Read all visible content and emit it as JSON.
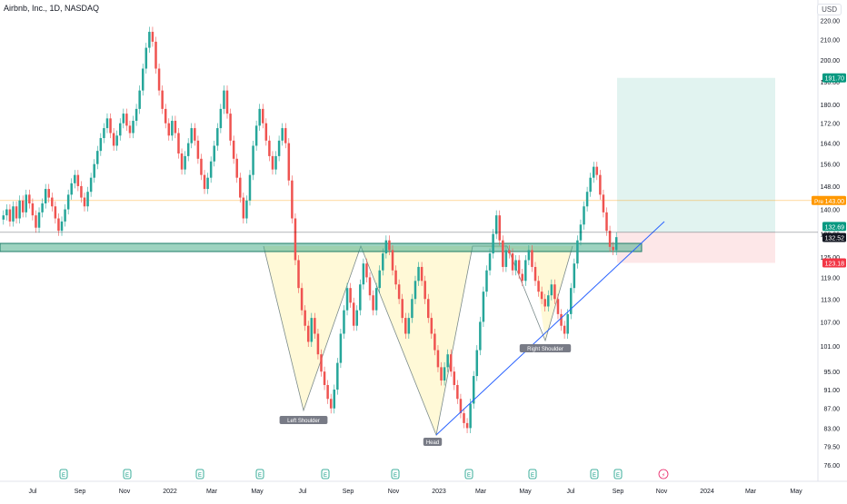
{
  "header": {
    "title": "Airbnb, Inc., 1D, NASDAQ",
    "currency": "USD"
  },
  "colors": {
    "up": "#26a69a",
    "down": "#ef5350",
    "trendline": "#2962ff",
    "neckline": "#1e7d68",
    "target": "#089981",
    "stop": "#f23645",
    "pre": "#ff9800",
    "last": "#131722"
  },
  "chart_data": {
    "type": "candlestick",
    "x_ticks": [
      "Jul",
      "Sep",
      "Nov",
      "2022",
      "Mar",
      "May",
      "Jul",
      "Sep",
      "Nov",
      "2023",
      "Mar",
      "May",
      "Jul",
      "Sep",
      "Nov",
      "2024",
      "Mar",
      "May"
    ],
    "y_ticks": [
      220.0,
      210.0,
      200.0,
      190.0,
      180.0,
      172.0,
      164.0,
      156.0,
      148.0,
      140.0,
      132.0,
      125.0,
      119.0,
      113.0,
      107.0,
      101.0,
      95.0,
      91.0,
      87.0,
      83.0,
      79.5,
      76.0
    ],
    "y_axis": {
      "scale": "log",
      "range": [
        76,
        224
      ]
    },
    "price_labels": [
      {
        "value": "191.70",
        "kind": "target"
      },
      {
        "value": "143.00",
        "prefix": "Pre",
        "kind": "pre"
      },
      {
        "value": "132.69",
        "kind": "target-small"
      },
      {
        "value": "132.52",
        "kind": "last"
      },
      {
        "value": "123.18",
        "kind": "stop"
      }
    ],
    "annotations": [
      "Left Shoulder",
      "Head",
      "Right Shoulder"
    ],
    "events": [
      "E",
      "E",
      "E",
      "E",
      "E",
      "E",
      "E",
      "E",
      "E",
      "E",
      "⚡",
      "E"
    ],
    "closes": [
      138,
      140,
      136,
      141,
      137,
      143,
      139,
      145,
      142,
      138,
      134,
      139,
      142,
      147,
      144,
      141,
      137,
      133,
      136,
      140,
      145,
      149,
      152,
      148,
      144,
      141,
      146,
      151,
      156,
      161,
      166,
      170,
      174,
      168,
      163,
      167,
      172,
      176,
      171,
      168,
      173,
      178,
      186,
      196,
      206,
      214,
      209,
      196,
      186,
      178,
      172,
      167,
      173,
      168,
      160,
      154,
      159,
      164,
      170,
      165,
      158,
      152,
      147,
      151,
      157,
      163,
      170,
      178,
      186,
      176,
      165,
      158,
      151,
      144,
      137,
      143,
      152,
      163,
      171,
      178,
      172,
      165,
      159,
      154,
      159,
      165,
      170,
      164,
      150,
      137,
      124,
      116,
      110,
      106,
      102,
      108,
      104,
      99,
      95,
      92,
      89,
      87,
      91,
      97,
      104,
      110,
      116,
      112,
      106,
      110,
      117,
      123,
      119,
      114,
      110,
      116,
      121,
      126,
      130,
      127,
      121,
      117,
      113,
      108,
      104,
      108,
      113,
      118,
      122,
      118,
      113,
      108,
      104,
      100,
      96,
      93,
      96,
      99,
      95,
      92,
      89,
      86,
      84,
      83,
      88,
      94,
      100,
      107,
      115,
      121,
      126,
      132,
      138,
      130,
      122,
      127,
      126,
      121,
      124,
      120,
      118,
      124,
      127,
      122,
      118,
      115,
      113,
      111,
      114,
      117,
      113,
      109,
      106,
      104,
      109,
      116,
      123,
      130,
      135,
      141,
      146,
      151,
      155,
      152,
      145,
      139,
      133,
      128,
      127,
      131
    ]
  }
}
